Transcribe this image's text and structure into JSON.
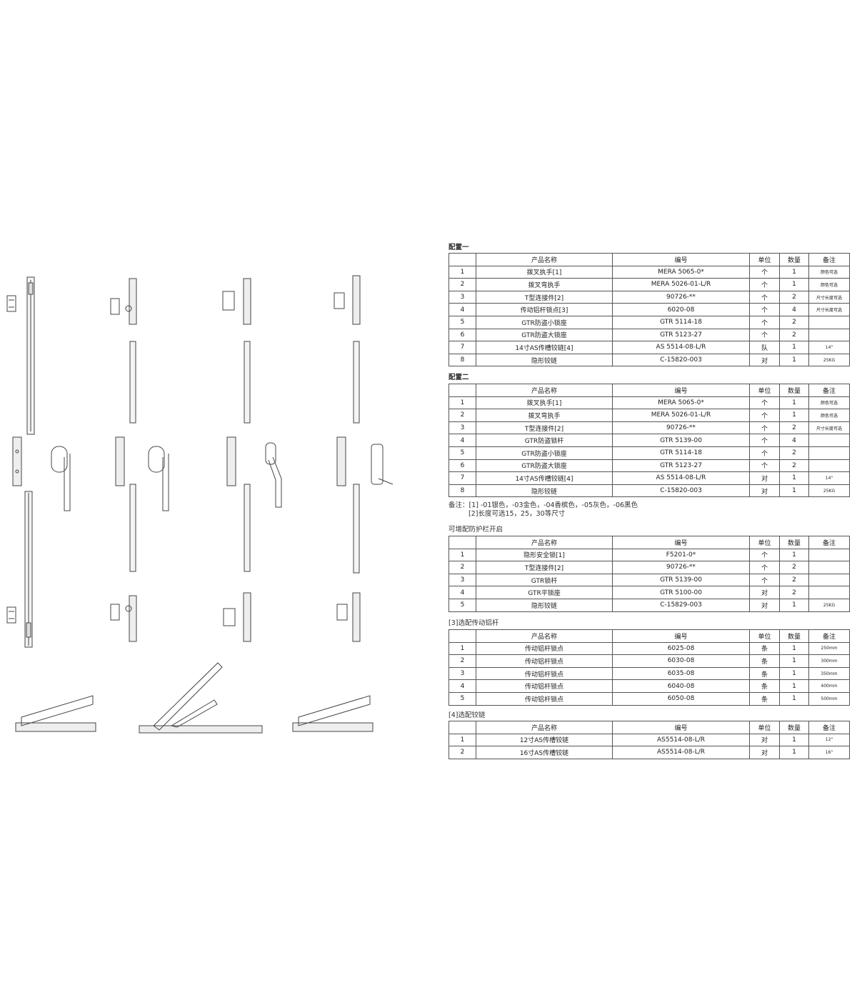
{
  "headers": [
    "",
    "产品名称",
    "编号",
    "单位",
    "数量",
    "备注"
  ],
  "sections": [
    {
      "title": "配置一",
      "rows": [
        [
          "1",
          "拨叉执手[1]",
          "MERA 5065-0*",
          "个",
          "1",
          "颜色可选"
        ],
        [
          "2",
          "拨叉弯执手",
          "MERA 5026-01-L/R",
          "个",
          "1",
          "颜色可选"
        ],
        [
          "3",
          "T型连接件[2]",
          "90726-**",
          "个",
          "2",
          "尺寸长度可选"
        ],
        [
          "4",
          "传动铝杆锁点[3]",
          "6020-08",
          "个",
          "4",
          "尺寸长度可选"
        ],
        [
          "5",
          "GTR防盗小锁座",
          "GTR 5114-18",
          "个",
          "2",
          ""
        ],
        [
          "6",
          "GTR防盗大锁座",
          "GTR 5123-27",
          "个",
          "2",
          ""
        ],
        [
          "7",
          "14寸AS传槽铰链[4]",
          "AS 5514-08-L/R",
          "队",
          "1",
          "14\""
        ],
        [
          "8",
          "隐形铰链",
          "C-15820-003",
          "对",
          "1",
          "25KG"
        ]
      ]
    },
    {
      "title": "配置二",
      "rows": [
        [
          "1",
          "拨叉执手[1]",
          "MERA 5065-0*",
          "个",
          "1",
          "颜色可选"
        ],
        [
          "2",
          "拨叉弯执手",
          "MERA 5026-01-L/R",
          "个",
          "1",
          "颜色可选"
        ],
        [
          "3",
          "T型连接件[2]",
          "90726-**",
          "个",
          "2",
          "尺寸长度可选"
        ],
        [
          "4",
          "GTR防盗锁杆",
          "GTR 5139-00",
          "个",
          "4",
          ""
        ],
        [
          "5",
          "GTR防盗小锁座",
          "GTR 5114-18",
          "个",
          "2",
          ""
        ],
        [
          "6",
          "GTR防盗大锁座",
          "GTR 5123-27",
          "个",
          "2",
          ""
        ],
        [
          "7",
          "14寸AS传槽铰链[4]",
          "AS 5514-08-L/R",
          "对",
          "1",
          "14\""
        ],
        [
          "8",
          "隐形铰链",
          "C-15820-003",
          "对",
          "1",
          "25KG"
        ]
      ]
    },
    {
      "title": "可增配防护栏开启",
      "rows": [
        [
          "1",
          "隐形安全锁[1]",
          "F5201-0*",
          "个",
          "1",
          ""
        ],
        [
          "2",
          "T型连接件[2]",
          "90726-**",
          "个",
          "2",
          ""
        ],
        [
          "3",
          "GTR锁杆",
          "GTR 5139-00",
          "个",
          "2",
          ""
        ],
        [
          "4",
          "GTR平锁座",
          "GTR 5100-00",
          "对",
          "2",
          ""
        ],
        [
          "5",
          "隐形铰链",
          "C-15829-003",
          "对",
          "1",
          "25KG"
        ]
      ]
    },
    {
      "title": "[3]选配传动铝杆",
      "rows": [
        [
          "1",
          "传动铝杆锁点",
          "6025-08",
          "条",
          "1",
          "250mm"
        ],
        [
          "2",
          "传动铝杆锁点",
          "6030-08",
          "条",
          "1",
          "300mm"
        ],
        [
          "3",
          "传动铝杆锁点",
          "6035-08",
          "条",
          "1",
          "350mm"
        ],
        [
          "4",
          "传动铝杆锁点",
          "6040-08",
          "条",
          "1",
          "400mm"
        ],
        [
          "5",
          "传动铝杆锁点",
          "6050-08",
          "条",
          "1",
          "500mm"
        ]
      ]
    },
    {
      "title": "[4]选配铰链",
      "rows": [
        [
          "1",
          "12寸AS传槽铰链",
          "AS5514-08-L/R",
          "对",
          "1",
          "12\""
        ],
        [
          "2",
          "16寸AS传槽铰链",
          "AS5514-08-L/R",
          "对",
          "1",
          "16\""
        ]
      ]
    }
  ],
  "notes": {
    "line1": "备注：[1] -01银色，-03金色，-04香槟色，-05灰色，-06黑色",
    "line2": "[2]长度可选15，25，30等尺寸"
  }
}
